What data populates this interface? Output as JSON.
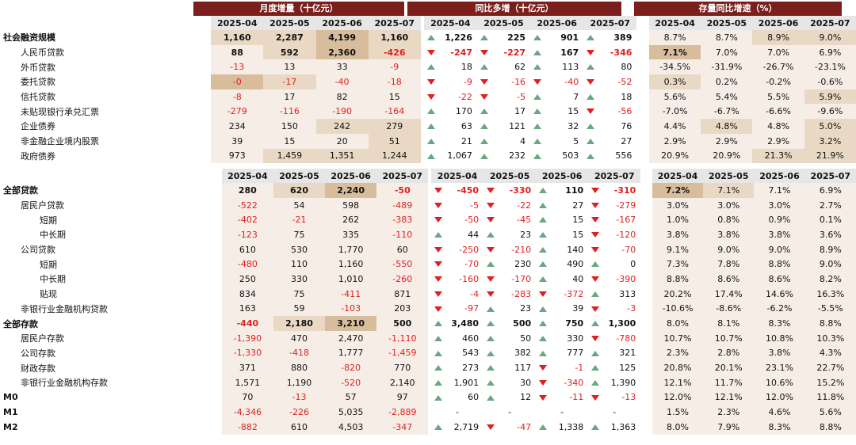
{
  "headers": {
    "monthly": "月度增量（十亿元）",
    "yoy_change": "同比多增（十亿元）",
    "stock_growth": "存量同比增速（%）"
  },
  "months": [
    "2025-04",
    "2025-05",
    "2025-06",
    "2025-07"
  ],
  "section1": [
    {
      "label": "社会融资规模",
      "level": 0,
      "m": [
        [
          "1,160",
          2
        ],
        [
          "2,287",
          2
        ],
        [
          "4,199",
          3
        ],
        [
          "1,160",
          2
        ]
      ],
      "y": [
        [
          "1,226",
          "up"
        ],
        [
          "225",
          "up"
        ],
        [
          "901",
          "up"
        ],
        [
          "389",
          "up"
        ]
      ],
      "g": [
        [
          "8.7%",
          1
        ],
        [
          "8.7%",
          1
        ],
        [
          "8.9%",
          2
        ],
        [
          "9.0%",
          2
        ]
      ],
      "bold": true
    },
    {
      "label": "人民币贷款",
      "level": 1,
      "m": [
        [
          "88",
          1
        ],
        [
          "592",
          2
        ],
        [
          "2,360",
          3
        ],
        [
          "-426",
          2
        ]
      ],
      "y": [
        [
          "-247",
          "dn"
        ],
        [
          "-227",
          "dn"
        ],
        [
          "167",
          "up"
        ],
        [
          "-346",
          "dn"
        ]
      ],
      "g": [
        [
          "7.1%",
          3
        ],
        [
          "7.0%",
          1
        ],
        [
          "7.0%",
          1
        ],
        [
          "6.9%",
          1
        ]
      ],
      "bold": true
    },
    {
      "label": "外币贷款",
      "level": 1,
      "m": [
        [
          "-13",
          1
        ],
        [
          "13",
          1
        ],
        [
          "33",
          1
        ],
        [
          "-9",
          1
        ]
      ],
      "y": [
        [
          "18",
          "up"
        ],
        [
          "62",
          "up"
        ],
        [
          "113",
          "up"
        ],
        [
          "80",
          "up"
        ]
      ],
      "g": [
        [
          "-34.5%",
          1
        ],
        [
          "-31.9%",
          1
        ],
        [
          "-26.7%",
          1
        ],
        [
          "-23.1%",
          1
        ]
      ]
    },
    {
      "label": "委托贷款",
      "level": 1,
      "m": [
        [
          "-0",
          3
        ],
        [
          "-17",
          2
        ],
        [
          "-40",
          1
        ],
        [
          "-18",
          1
        ]
      ],
      "y": [
        [
          "-9",
          "dn"
        ],
        [
          "-16",
          "dn"
        ],
        [
          "-40",
          "dn"
        ],
        [
          "-52",
          "dn"
        ]
      ],
      "g": [
        [
          "0.3%",
          2
        ],
        [
          "0.2%",
          1
        ],
        [
          "-0.2%",
          1
        ],
        [
          "-0.6%",
          1
        ]
      ]
    },
    {
      "label": "信托贷款",
      "level": 1,
      "m": [
        [
          "-8",
          1
        ],
        [
          "17",
          1
        ],
        [
          "82",
          1
        ],
        [
          "15",
          1
        ]
      ],
      "y": [
        [
          "-22",
          "dn"
        ],
        [
          "-5",
          "dn"
        ],
        [
          "7",
          "up"
        ],
        [
          "18",
          "up"
        ]
      ],
      "g": [
        [
          "5.6%",
          1
        ],
        [
          "5.4%",
          1
        ],
        [
          "5.5%",
          1
        ],
        [
          "5.9%",
          2
        ]
      ]
    },
    {
      "label": "未贴现银行承兑汇票",
      "level": 1,
      "m": [
        [
          "-279",
          1
        ],
        [
          "-116",
          1
        ],
        [
          "-190",
          1
        ],
        [
          "-164",
          1
        ]
      ],
      "y": [
        [
          "170",
          "up"
        ],
        [
          "17",
          "up"
        ],
        [
          "15",
          "up"
        ],
        [
          "-56",
          "dn"
        ]
      ],
      "g": [
        [
          "-7.0%",
          1
        ],
        [
          "-6.7%",
          1
        ],
        [
          "-6.6%",
          1
        ],
        [
          "-9.6%",
          1
        ]
      ]
    },
    {
      "label": "企业债券",
      "level": 1,
      "m": [
        [
          "234",
          1
        ],
        [
          "150",
          1
        ],
        [
          "242",
          2
        ],
        [
          "279",
          2
        ]
      ],
      "y": [
        [
          "63",
          "up"
        ],
        [
          "121",
          "up"
        ],
        [
          "32",
          "up"
        ],
        [
          "76",
          "up"
        ]
      ],
      "g": [
        [
          "4.4%",
          1
        ],
        [
          "4.8%",
          2
        ],
        [
          "4.8%",
          1
        ],
        [
          "5.0%",
          2
        ]
      ]
    },
    {
      "label": "非金融企业境内股票",
      "level": 1,
      "m": [
        [
          "39",
          1
        ],
        [
          "15",
          1
        ],
        [
          "20",
          1
        ],
        [
          "51",
          2
        ]
      ],
      "y": [
        [
          "21",
          "up"
        ],
        [
          "4",
          "up"
        ],
        [
          "5",
          "up"
        ],
        [
          "27",
          "up"
        ]
      ],
      "g": [
        [
          "2.9%",
          1
        ],
        [
          "2.9%",
          1
        ],
        [
          "2.9%",
          1
        ],
        [
          "3.2%",
          2
        ]
      ]
    },
    {
      "label": "政府债券",
      "level": 1,
      "m": [
        [
          "973",
          1
        ],
        [
          "1,459",
          2
        ],
        [
          "1,351",
          2
        ],
        [
          "1,244",
          2
        ]
      ],
      "y": [
        [
          "1,067",
          "up"
        ],
        [
          "232",
          "up"
        ],
        [
          "503",
          "up"
        ],
        [
          "556",
          "up"
        ]
      ],
      "g": [
        [
          "20.9%",
          1
        ],
        [
          "20.9%",
          1
        ],
        [
          "21.3%",
          2
        ],
        [
          "21.9%",
          2
        ]
      ]
    }
  ],
  "section2": [
    {
      "label": "全部贷款",
      "level": 0,
      "m": [
        [
          "280",
          1
        ],
        [
          "620",
          2
        ],
        [
          "2,240",
          3
        ],
        [
          "-50",
          1
        ]
      ],
      "y": [
        [
          "-450",
          "dn"
        ],
        [
          "-330",
          "dn"
        ],
        [
          "110",
          "up"
        ],
        [
          "-310",
          "dn"
        ]
      ],
      "g": [
        [
          "7.2%",
          3
        ],
        [
          "7.1%",
          2
        ],
        [
          "7.1%",
          1
        ],
        [
          "6.9%",
          1
        ]
      ],
      "bold": true
    },
    {
      "label": "居民户贷款",
      "level": 1,
      "m": [
        [
          "-522",
          1
        ],
        [
          "54",
          1
        ],
        [
          "598",
          1
        ],
        [
          "-489",
          1
        ]
      ],
      "y": [
        [
          "-5",
          "dn"
        ],
        [
          "-22",
          "dn"
        ],
        [
          "27",
          "up"
        ],
        [
          "-279",
          "dn"
        ]
      ],
      "g": [
        [
          "3.0%",
          1
        ],
        [
          "3.0%",
          1
        ],
        [
          "3.0%",
          1
        ],
        [
          "2.7%",
          1
        ]
      ]
    },
    {
      "label": "短期",
      "level": 2,
      "m": [
        [
          "-402",
          1
        ],
        [
          "-21",
          1
        ],
        [
          "262",
          1
        ],
        [
          "-383",
          1
        ]
      ],
      "y": [
        [
          "-50",
          "dn"
        ],
        [
          "-45",
          "dn"
        ],
        [
          "15",
          "up"
        ],
        [
          "-167",
          "dn"
        ]
      ],
      "g": [
        [
          "1.0%",
          1
        ],
        [
          "0.8%",
          1
        ],
        [
          "0.9%",
          1
        ],
        [
          "0.1%",
          1
        ]
      ]
    },
    {
      "label": "中长期",
      "level": 2,
      "m": [
        [
          "-123",
          1
        ],
        [
          "75",
          1
        ],
        [
          "335",
          1
        ],
        [
          "-110",
          1
        ]
      ],
      "y": [
        [
          "44",
          "up"
        ],
        [
          "23",
          "up"
        ],
        [
          "15",
          "up"
        ],
        [
          "-120",
          "dn"
        ]
      ],
      "g": [
        [
          "3.8%",
          1
        ],
        [
          "3.8%",
          1
        ],
        [
          "3.8%",
          1
        ],
        [
          "3.6%",
          1
        ]
      ]
    },
    {
      "label": "公司贷款",
      "level": 1,
      "m": [
        [
          "610",
          1
        ],
        [
          "530",
          1
        ],
        [
          "1,770",
          1
        ],
        [
          "60",
          1
        ]
      ],
      "y": [
        [
          "-250",
          "dn"
        ],
        [
          "-210",
          "dn"
        ],
        [
          "140",
          "up"
        ],
        [
          "-70",
          "dn"
        ]
      ],
      "g": [
        [
          "9.1%",
          1
        ],
        [
          "9.0%",
          1
        ],
        [
          "9.0%",
          1
        ],
        [
          "8.9%",
          1
        ]
      ]
    },
    {
      "label": "短期",
      "level": 2,
      "m": [
        [
          "-480",
          1
        ],
        [
          "110",
          1
        ],
        [
          "1,160",
          1
        ],
        [
          "-550",
          1
        ]
      ],
      "y": [
        [
          "-70",
          "dn"
        ],
        [
          "230",
          "up"
        ],
        [
          "490",
          "up"
        ],
        [
          "0",
          "up"
        ]
      ],
      "g": [
        [
          "7.3%",
          1
        ],
        [
          "7.8%",
          1
        ],
        [
          "8.8%",
          1
        ],
        [
          "9.0%",
          1
        ]
      ]
    },
    {
      "label": "中长期",
      "level": 2,
      "m": [
        [
          "250",
          1
        ],
        [
          "330",
          1
        ],
        [
          "1,010",
          1
        ],
        [
          "-260",
          1
        ]
      ],
      "y": [
        [
          "-160",
          "dn"
        ],
        [
          "-170",
          "dn"
        ],
        [
          "40",
          "up"
        ],
        [
          "-390",
          "dn"
        ]
      ],
      "g": [
        [
          "8.8%",
          1
        ],
        [
          "8.6%",
          1
        ],
        [
          "8.6%",
          1
        ],
        [
          "8.2%",
          1
        ]
      ]
    },
    {
      "label": "贴现",
      "level": 2,
      "m": [
        [
          "834",
          1
        ],
        [
          "75",
          1
        ],
        [
          "-411",
          1
        ],
        [
          "871",
          1
        ]
      ],
      "y": [
        [
          "-4",
          "dn"
        ],
        [
          "-283",
          "dn"
        ],
        [
          "-372",
          "dn"
        ],
        [
          "313",
          "up"
        ]
      ],
      "g": [
        [
          "20.2%",
          1
        ],
        [
          "17.4%",
          1
        ],
        [
          "14.6%",
          1
        ],
        [
          "16.3%",
          1
        ]
      ]
    },
    {
      "label": "非银行业金融机构贷款",
      "level": 1,
      "m": [
        [
          "163",
          1
        ],
        [
          "59",
          1
        ],
        [
          "-103",
          1
        ],
        [
          "203",
          1
        ]
      ],
      "y": [
        [
          "-97",
          "dn"
        ],
        [
          "23",
          "up"
        ],
        [
          "39",
          "up"
        ],
        [
          "-3",
          "dn"
        ]
      ],
      "g": [
        [
          "-10.6%",
          1
        ],
        [
          "-8.6%",
          1
        ],
        [
          "-6.2%",
          1
        ],
        [
          "-5.5%",
          1
        ]
      ]
    },
    {
      "label": "全部存款",
      "level": 0,
      "m": [
        [
          "-440",
          1
        ],
        [
          "2,180",
          2
        ],
        [
          "3,210",
          3
        ],
        [
          "500",
          1
        ]
      ],
      "y": [
        [
          "3,480",
          "up"
        ],
        [
          "500",
          "up"
        ],
        [
          "750",
          "up"
        ],
        [
          "1,300",
          "up"
        ]
      ],
      "g": [
        [
          "8.0%",
          1
        ],
        [
          "8.1%",
          1
        ],
        [
          "8.3%",
          1
        ],
        [
          "8.8%",
          1
        ]
      ],
      "bold": true
    },
    {
      "label": "居民户存款",
      "level": 1,
      "m": [
        [
          "-1,390",
          1
        ],
        [
          "470",
          1
        ],
        [
          "2,470",
          1
        ],
        [
          "-1,110",
          1
        ]
      ],
      "y": [
        [
          "460",
          "up"
        ],
        [
          "50",
          "up"
        ],
        [
          "330",
          "up"
        ],
        [
          "-780",
          "dn"
        ]
      ],
      "g": [
        [
          "10.7%",
          1
        ],
        [
          "10.7%",
          1
        ],
        [
          "10.8%",
          1
        ],
        [
          "10.3%",
          1
        ]
      ]
    },
    {
      "label": "公司存款",
      "level": 1,
      "m": [
        [
          "-1,330",
          1
        ],
        [
          "-418",
          1
        ],
        [
          "1,777",
          1
        ],
        [
          "-1,459",
          1
        ]
      ],
      "y": [
        [
          "543",
          "up"
        ],
        [
          "382",
          "up"
        ],
        [
          "777",
          "up"
        ],
        [
          "321",
          "up"
        ]
      ],
      "g": [
        [
          "2.3%",
          1
        ],
        [
          "2.8%",
          1
        ],
        [
          "3.8%",
          1
        ],
        [
          "4.3%",
          1
        ]
      ]
    },
    {
      "label": "财政存款",
      "level": 1,
      "m": [
        [
          "371",
          1
        ],
        [
          "880",
          1
        ],
        [
          "-820",
          1
        ],
        [
          "770",
          1
        ]
      ],
      "y": [
        [
          "273",
          "up"
        ],
        [
          "117",
          "up"
        ],
        [
          "-1",
          "dn"
        ],
        [
          "125",
          "up"
        ]
      ],
      "g": [
        [
          "20.8%",
          1
        ],
        [
          "20.1%",
          1
        ],
        [
          "23.1%",
          1
        ],
        [
          "22.7%",
          1
        ]
      ]
    },
    {
      "label": "非银行业金融机构存款",
      "level": 1,
      "m": [
        [
          "1,571",
          1
        ],
        [
          "1,190",
          1
        ],
        [
          "-520",
          1
        ],
        [
          "2,140",
          1
        ]
      ],
      "y": [
        [
          "1,901",
          "up"
        ],
        [
          "30",
          "up"
        ],
        [
          "-340",
          "dn"
        ],
        [
          "1,390",
          "up"
        ]
      ],
      "g": [
        [
          "12.1%",
          1
        ],
        [
          "11.7%",
          1
        ],
        [
          "10.6%",
          1
        ],
        [
          "15.2%",
          1
        ]
      ]
    },
    {
      "label": "M0",
      "level": 0,
      "m": [
        [
          "70",
          1
        ],
        [
          "-13",
          1
        ],
        [
          "57",
          1
        ],
        [
          "97",
          1
        ]
      ],
      "y": [
        [
          "60",
          "up"
        ],
        [
          "12",
          "up"
        ],
        [
          "-11",
          "dn"
        ],
        [
          "-13",
          "dn"
        ]
      ],
      "g": [
        [
          "12.0%",
          1
        ],
        [
          "12.1%",
          1
        ],
        [
          "12.0%",
          1
        ],
        [
          "11.8%",
          1
        ]
      ],
      "plain": true
    },
    {
      "label": "M1",
      "level": 0,
      "m": [
        [
          "-4,346",
          1
        ],
        [
          "-226",
          1
        ],
        [
          "5,035",
          1
        ],
        [
          "-2,889",
          1
        ]
      ],
      "y": [
        [
          "-",
          ""
        ],
        [
          "-",
          ""
        ],
        [
          "-",
          ""
        ],
        [
          "-",
          ""
        ]
      ],
      "g": [
        [
          "1.5%",
          1
        ],
        [
          "2.3%",
          1
        ],
        [
          "4.6%",
          1
        ],
        [
          "5.6%",
          1
        ]
      ],
      "plain": true
    },
    {
      "label": "M2",
      "level": 0,
      "m": [
        [
          "-882",
          1
        ],
        [
          "610",
          1
        ],
        [
          "4,503",
          1
        ],
        [
          "-347",
          1
        ]
      ],
      "y": [
        [
          "2,719",
          "up"
        ],
        [
          "-47",
          "dn"
        ],
        [
          "1,338",
          "up"
        ],
        [
          "1,363",
          "up"
        ]
      ],
      "g": [
        [
          "8.0%",
          1
        ],
        [
          "7.9%",
          1
        ],
        [
          "8.3%",
          1
        ],
        [
          "8.8%",
          1
        ]
      ],
      "plain": true
    }
  ]
}
